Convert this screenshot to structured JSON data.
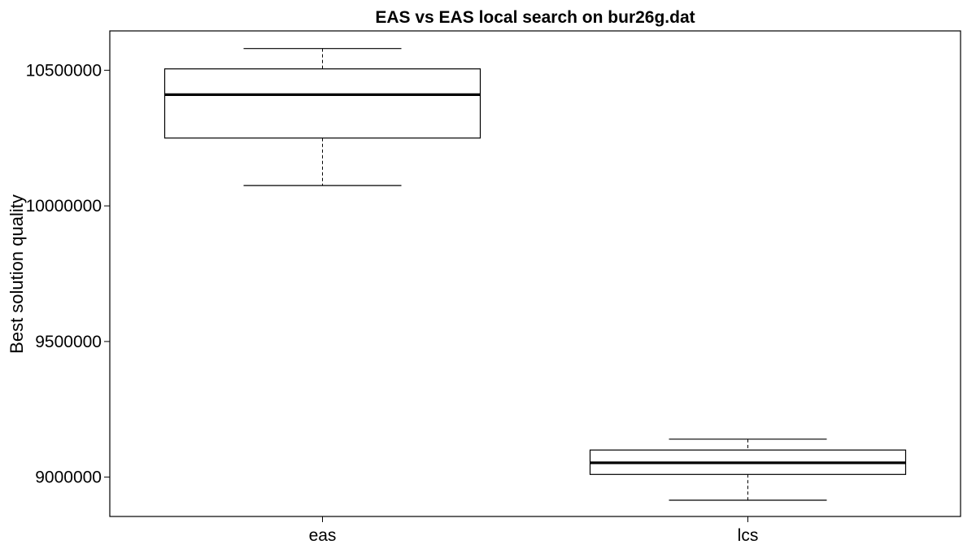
{
  "chart_data": {
    "type": "box",
    "title": "EAS vs EAS local search on bur26g.dat",
    "xlabel": "",
    "ylabel": "Best solution quality",
    "ylim": [
      8855000,
      10645000
    ],
    "yticks": [
      9000000,
      9500000,
      10000000,
      10500000
    ],
    "ytick_labels": [
      "9000000",
      "9500000",
      "10000000",
      "10500000"
    ],
    "categories": [
      "eas",
      "lcs"
    ],
    "boxes": [
      {
        "category": "eas",
        "whisker_low": 10075000,
        "q1": 10250000,
        "median": 10410000,
        "q3": 10505000,
        "whisker_high": 10580000
      },
      {
        "category": "lcs",
        "whisker_low": 8915000,
        "q1": 9010000,
        "median": 9053000,
        "q3": 9100000,
        "whisker_high": 9140000
      }
    ],
    "grid": false,
    "legend": "none"
  }
}
